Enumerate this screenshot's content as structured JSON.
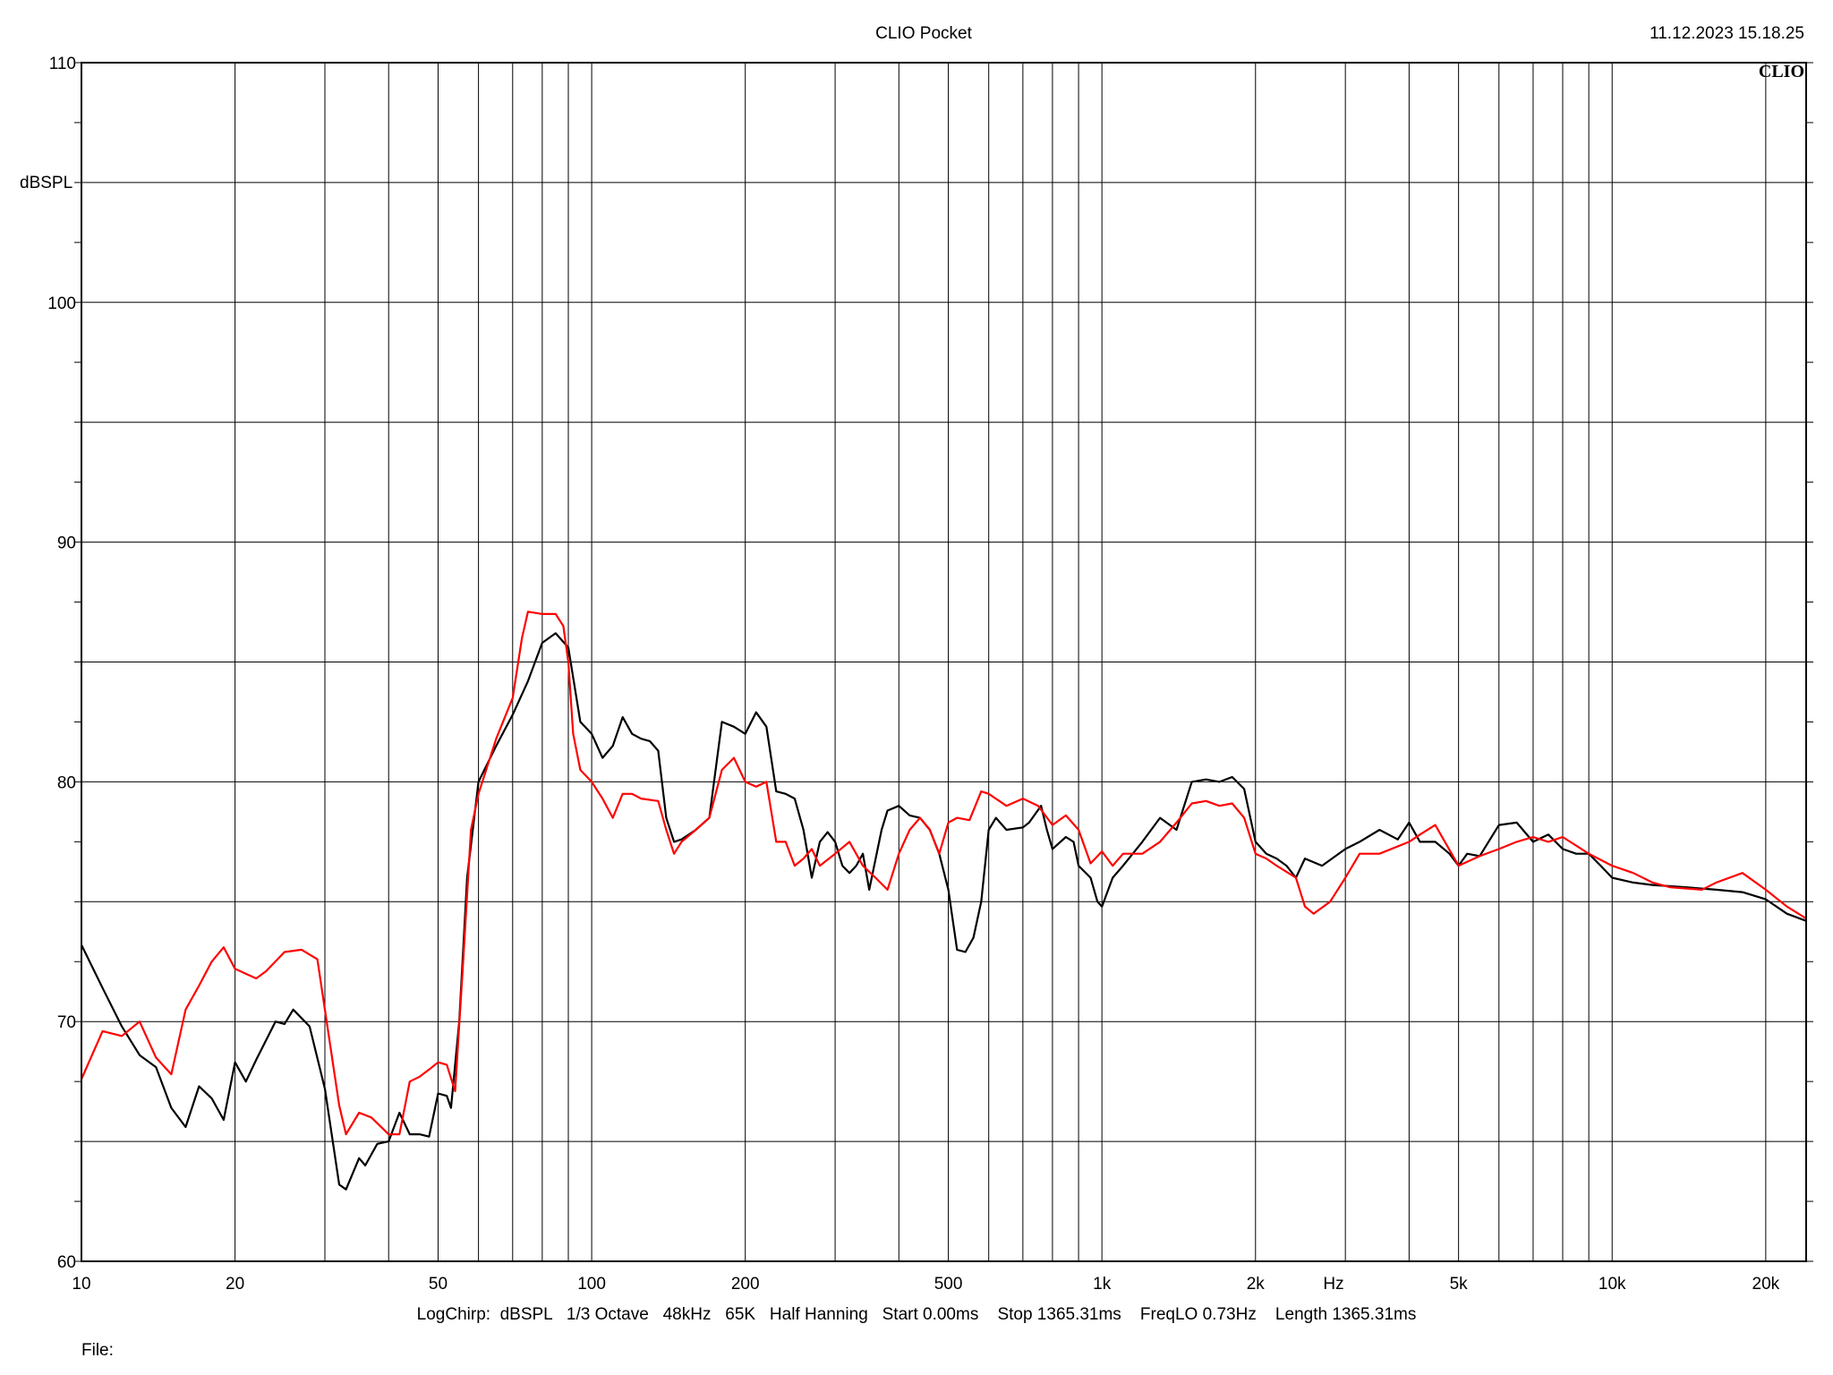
{
  "header": {
    "title": "CLIO Pocket",
    "timestamp": "11.12.2023 15.18.25",
    "brand": "CLIO"
  },
  "footer": {
    "info": "LogChirp:  dBSPL   1/3 Octave   48kHz   65K   Half Hanning   Start 0.00ms    Stop 1365.31ms    FreqLO 0.73Hz    Length 1365.31ms",
    "file_label": "File:"
  },
  "colors": {
    "series_black": "#000000",
    "series_red": "#ff0000",
    "grid": "#000000"
  },
  "chart_data": {
    "type": "line",
    "title": "CLIO Pocket",
    "xlabel": "Hz",
    "ylabel": "dBSPL",
    "xscale": "log",
    "xlim": [
      10,
      24000
    ],
    "ylim": [
      60,
      110
    ],
    "grid": true,
    "x_ticks": [
      {
        "v": 10,
        "label": "10"
      },
      {
        "v": 20,
        "label": "20"
      },
      {
        "v": 50,
        "label": "50"
      },
      {
        "v": 100,
        "label": "100"
      },
      {
        "v": 200,
        "label": "200"
      },
      {
        "v": 500,
        "label": "500"
      },
      {
        "v": 1000,
        "label": "1k"
      },
      {
        "v": 2000,
        "label": "2k"
      },
      {
        "v": 5000,
        "label": "5k"
      },
      {
        "v": 10000,
        "label": "10k"
      },
      {
        "v": 20000,
        "label": "20k"
      }
    ],
    "y_ticks": [
      {
        "v": 60,
        "label": "60"
      },
      {
        "v": 70,
        "label": "70"
      },
      {
        "v": 80,
        "label": "80"
      },
      {
        "v": 90,
        "label": "90"
      },
      {
        "v": 100,
        "label": "100"
      },
      {
        "v": 110,
        "label": "110"
      }
    ],
    "series": [
      {
        "color": "#000000",
        "points": [
          [
            10,
            73.2
          ],
          [
            11,
            71.4
          ],
          [
            12,
            69.8
          ],
          [
            13,
            68.6
          ],
          [
            14,
            68.1
          ],
          [
            15,
            66.4
          ],
          [
            16,
            65.6
          ],
          [
            17,
            67.3
          ],
          [
            18,
            66.8
          ],
          [
            19,
            65.9
          ],
          [
            20,
            68.3
          ],
          [
            21,
            67.5
          ],
          [
            22,
            68.4
          ],
          [
            24,
            70.0
          ],
          [
            25,
            69.9
          ],
          [
            26,
            70.5
          ],
          [
            28,
            69.8
          ],
          [
            30,
            67.2
          ],
          [
            32,
            63.2
          ],
          [
            33,
            63.0
          ],
          [
            35,
            64.3
          ],
          [
            36,
            64.0
          ],
          [
            38,
            64.9
          ],
          [
            40,
            65.0
          ],
          [
            42,
            66.2
          ],
          [
            44,
            65.3
          ],
          [
            46,
            65.3
          ],
          [
            48,
            65.2
          ],
          [
            50,
            67.0
          ],
          [
            52,
            66.9
          ],
          [
            53,
            66.4
          ],
          [
            55,
            70.0
          ],
          [
            57,
            76.0
          ],
          [
            60,
            80.0
          ],
          [
            65,
            81.5
          ],
          [
            70,
            82.8
          ],
          [
            75,
            84.2
          ],
          [
            80,
            85.8
          ],
          [
            85,
            86.2
          ],
          [
            90,
            85.6
          ],
          [
            95,
            82.5
          ],
          [
            100,
            82.0
          ],
          [
            105,
            81.0
          ],
          [
            110,
            81.5
          ],
          [
            115,
            82.7
          ],
          [
            120,
            82.0
          ],
          [
            125,
            81.8
          ],
          [
            130,
            81.7
          ],
          [
            135,
            81.3
          ],
          [
            140,
            78.5
          ],
          [
            145,
            77.5
          ],
          [
            150,
            77.6
          ],
          [
            160,
            78.0
          ],
          [
            170,
            78.5
          ],
          [
            180,
            82.5
          ],
          [
            190,
            82.3
          ],
          [
            200,
            82.0
          ],
          [
            210,
            82.9
          ],
          [
            220,
            82.3
          ],
          [
            230,
            79.6
          ],
          [
            240,
            79.5
          ],
          [
            250,
            79.3
          ],
          [
            260,
            78.0
          ],
          [
            270,
            76.0
          ],
          [
            280,
            77.5
          ],
          [
            290,
            77.9
          ],
          [
            300,
            77.5
          ],
          [
            310,
            76.5
          ],
          [
            320,
            76.2
          ],
          [
            330,
            76.5
          ],
          [
            340,
            77.0
          ],
          [
            350,
            75.5
          ],
          [
            370,
            78.0
          ],
          [
            380,
            78.8
          ],
          [
            400,
            79.0
          ],
          [
            420,
            78.6
          ],
          [
            440,
            78.5
          ],
          [
            460,
            78.0
          ],
          [
            480,
            77.0
          ],
          [
            500,
            75.5
          ],
          [
            520,
            73.0
          ],
          [
            540,
            72.9
          ],
          [
            560,
            73.5
          ],
          [
            580,
            75.0
          ],
          [
            600,
            78.0
          ],
          [
            620,
            78.5
          ],
          [
            650,
            78.0
          ],
          [
            700,
            78.1
          ],
          [
            720,
            78.3
          ],
          [
            760,
            79.0
          ],
          [
            780,
            78.0
          ],
          [
            800,
            77.2
          ],
          [
            850,
            77.7
          ],
          [
            880,
            77.5
          ],
          [
            900,
            76.5
          ],
          [
            950,
            76.0
          ],
          [
            980,
            75.0
          ],
          [
            1000,
            74.8
          ],
          [
            1050,
            76.0
          ],
          [
            1100,
            76.5
          ],
          [
            1200,
            77.5
          ],
          [
            1300,
            78.5
          ],
          [
            1400,
            78.0
          ],
          [
            1500,
            80.0
          ],
          [
            1600,
            80.1
          ],
          [
            1700,
            80.0
          ],
          [
            1800,
            80.2
          ],
          [
            1900,
            79.7
          ],
          [
            2000,
            77.5
          ],
          [
            2100,
            77.0
          ],
          [
            2200,
            76.8
          ],
          [
            2300,
            76.5
          ],
          [
            2400,
            76.0
          ],
          [
            2500,
            76.8
          ],
          [
            2700,
            76.5
          ],
          [
            3000,
            77.2
          ],
          [
            3200,
            77.5
          ],
          [
            3500,
            78.0
          ],
          [
            3800,
            77.6
          ],
          [
            4000,
            78.3
          ],
          [
            4200,
            77.5
          ],
          [
            4500,
            77.5
          ],
          [
            4800,
            77.0
          ],
          [
            5000,
            76.5
          ],
          [
            5200,
            77.0
          ],
          [
            5500,
            76.9
          ],
          [
            6000,
            78.2
          ],
          [
            6500,
            78.3
          ],
          [
            7000,
            77.5
          ],
          [
            7500,
            77.8
          ],
          [
            8000,
            77.2
          ],
          [
            8500,
            77.0
          ],
          [
            9000,
            77.0
          ],
          [
            9500,
            76.5
          ],
          [
            10000,
            76.0
          ],
          [
            11000,
            75.8
          ],
          [
            12000,
            75.7
          ],
          [
            14000,
            75.6
          ],
          [
            16000,
            75.5
          ],
          [
            18000,
            75.4
          ],
          [
            20000,
            75.1
          ],
          [
            22000,
            74.5
          ],
          [
            24000,
            74.2
          ]
        ]
      },
      {
        "color": "#ff0000",
        "points": [
          [
            10,
            67.6
          ],
          [
            11,
            69.6
          ],
          [
            12,
            69.4
          ],
          [
            13,
            70.0
          ],
          [
            14,
            68.5
          ],
          [
            15,
            67.8
          ],
          [
            16,
            70.5
          ],
          [
            17,
            71.5
          ],
          [
            18,
            72.5
          ],
          [
            19,
            73.1
          ],
          [
            20,
            72.2
          ],
          [
            22,
            71.8
          ],
          [
            23,
            72.1
          ],
          [
            25,
            72.9
          ],
          [
            27,
            73.0
          ],
          [
            29,
            72.6
          ],
          [
            30,
            70.5
          ],
          [
            32,
            66.5
          ],
          [
            33,
            65.3
          ],
          [
            35,
            66.2
          ],
          [
            37,
            66.0
          ],
          [
            40,
            65.3
          ],
          [
            42,
            65.3
          ],
          [
            44,
            67.5
          ],
          [
            46,
            67.7
          ],
          [
            48,
            68.0
          ],
          [
            50,
            68.3
          ],
          [
            52,
            68.2
          ],
          [
            54,
            67.1
          ],
          [
            56,
            72.5
          ],
          [
            58,
            78.0
          ],
          [
            60,
            79.5
          ],
          [
            65,
            81.8
          ],
          [
            70,
            83.5
          ],
          [
            73,
            86.0
          ],
          [
            75,
            87.1
          ],
          [
            80,
            87.0
          ],
          [
            85,
            87.0
          ],
          [
            88,
            86.5
          ],
          [
            90,
            85.0
          ],
          [
            92,
            82.0
          ],
          [
            95,
            80.5
          ],
          [
            100,
            80.0
          ],
          [
            105,
            79.3
          ],
          [
            110,
            78.5
          ],
          [
            115,
            79.5
          ],
          [
            120,
            79.5
          ],
          [
            125,
            79.3
          ],
          [
            135,
            79.2
          ],
          [
            140,
            78.0
          ],
          [
            145,
            77.0
          ],
          [
            150,
            77.5
          ],
          [
            160,
            78.0
          ],
          [
            170,
            78.5
          ],
          [
            180,
            80.5
          ],
          [
            190,
            81.0
          ],
          [
            200,
            80.0
          ],
          [
            210,
            79.8
          ],
          [
            220,
            80.0
          ],
          [
            230,
            77.5
          ],
          [
            240,
            77.5
          ],
          [
            250,
            76.5
          ],
          [
            260,
            76.8
          ],
          [
            270,
            77.2
          ],
          [
            280,
            76.5
          ],
          [
            300,
            77.0
          ],
          [
            320,
            77.5
          ],
          [
            340,
            76.5
          ],
          [
            360,
            76.0
          ],
          [
            380,
            75.5
          ],
          [
            400,
            77.0
          ],
          [
            420,
            78.0
          ],
          [
            440,
            78.5
          ],
          [
            460,
            78.0
          ],
          [
            480,
            77.0
          ],
          [
            500,
            78.3
          ],
          [
            520,
            78.5
          ],
          [
            550,
            78.4
          ],
          [
            580,
            79.6
          ],
          [
            600,
            79.5
          ],
          [
            650,
            79.0
          ],
          [
            700,
            79.3
          ],
          [
            750,
            79.0
          ],
          [
            800,
            78.2
          ],
          [
            850,
            78.6
          ],
          [
            900,
            78.0
          ],
          [
            950,
            76.6
          ],
          [
            1000,
            77.1
          ],
          [
            1050,
            76.5
          ],
          [
            1100,
            77.0
          ],
          [
            1200,
            77.0
          ],
          [
            1300,
            77.5
          ],
          [
            1400,
            78.3
          ],
          [
            1500,
            79.1
          ],
          [
            1600,
            79.2
          ],
          [
            1700,
            79.0
          ],
          [
            1800,
            79.1
          ],
          [
            1900,
            78.5
          ],
          [
            2000,
            77.0
          ],
          [
            2100,
            76.8
          ],
          [
            2200,
            76.5
          ],
          [
            2400,
            76.0
          ],
          [
            2500,
            74.8
          ],
          [
            2600,
            74.5
          ],
          [
            2800,
            75.0
          ],
          [
            3000,
            76.0
          ],
          [
            3200,
            77.0
          ],
          [
            3500,
            77.0
          ],
          [
            4000,
            77.5
          ],
          [
            4200,
            77.8
          ],
          [
            4500,
            78.2
          ],
          [
            5000,
            76.5
          ],
          [
            5500,
            76.9
          ],
          [
            6000,
            77.2
          ],
          [
            6500,
            77.5
          ],
          [
            7000,
            77.7
          ],
          [
            7500,
            77.5
          ],
          [
            8000,
            77.7
          ],
          [
            9000,
            77.0
          ],
          [
            10000,
            76.5
          ],
          [
            11000,
            76.2
          ],
          [
            12000,
            75.8
          ],
          [
            13000,
            75.6
          ],
          [
            15000,
            75.5
          ],
          [
            16000,
            75.8
          ],
          [
            18000,
            76.2
          ],
          [
            20000,
            75.5
          ],
          [
            22000,
            74.8
          ],
          [
            24000,
            74.3
          ]
        ]
      }
    ]
  }
}
